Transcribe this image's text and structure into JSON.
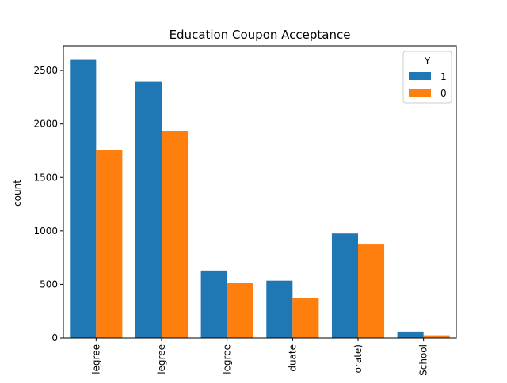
{
  "chart_data": {
    "type": "bar",
    "title": "Education Coupon Acceptance",
    "xlabel": "",
    "ylabel": "count",
    "categories": [
      "legree",
      "legree",
      "legree",
      "duate",
      "orate)",
      "School"
    ],
    "series": [
      {
        "name": "1",
        "color": "#1f77b4",
        "values": [
          2600,
          2400,
          630,
          535,
          975,
          60
        ]
      },
      {
        "name": "0",
        "color": "#ff7f0e",
        "values": [
          1755,
          1935,
          515,
          370,
          880,
          25
        ]
      }
    ],
    "ylim": [
      0,
      2730
    ],
    "yticks": [
      0,
      500,
      1000,
      1500,
      2000,
      2500
    ],
    "legend": {
      "title": "Y",
      "placement": "top-right"
    },
    "grid": false
  }
}
